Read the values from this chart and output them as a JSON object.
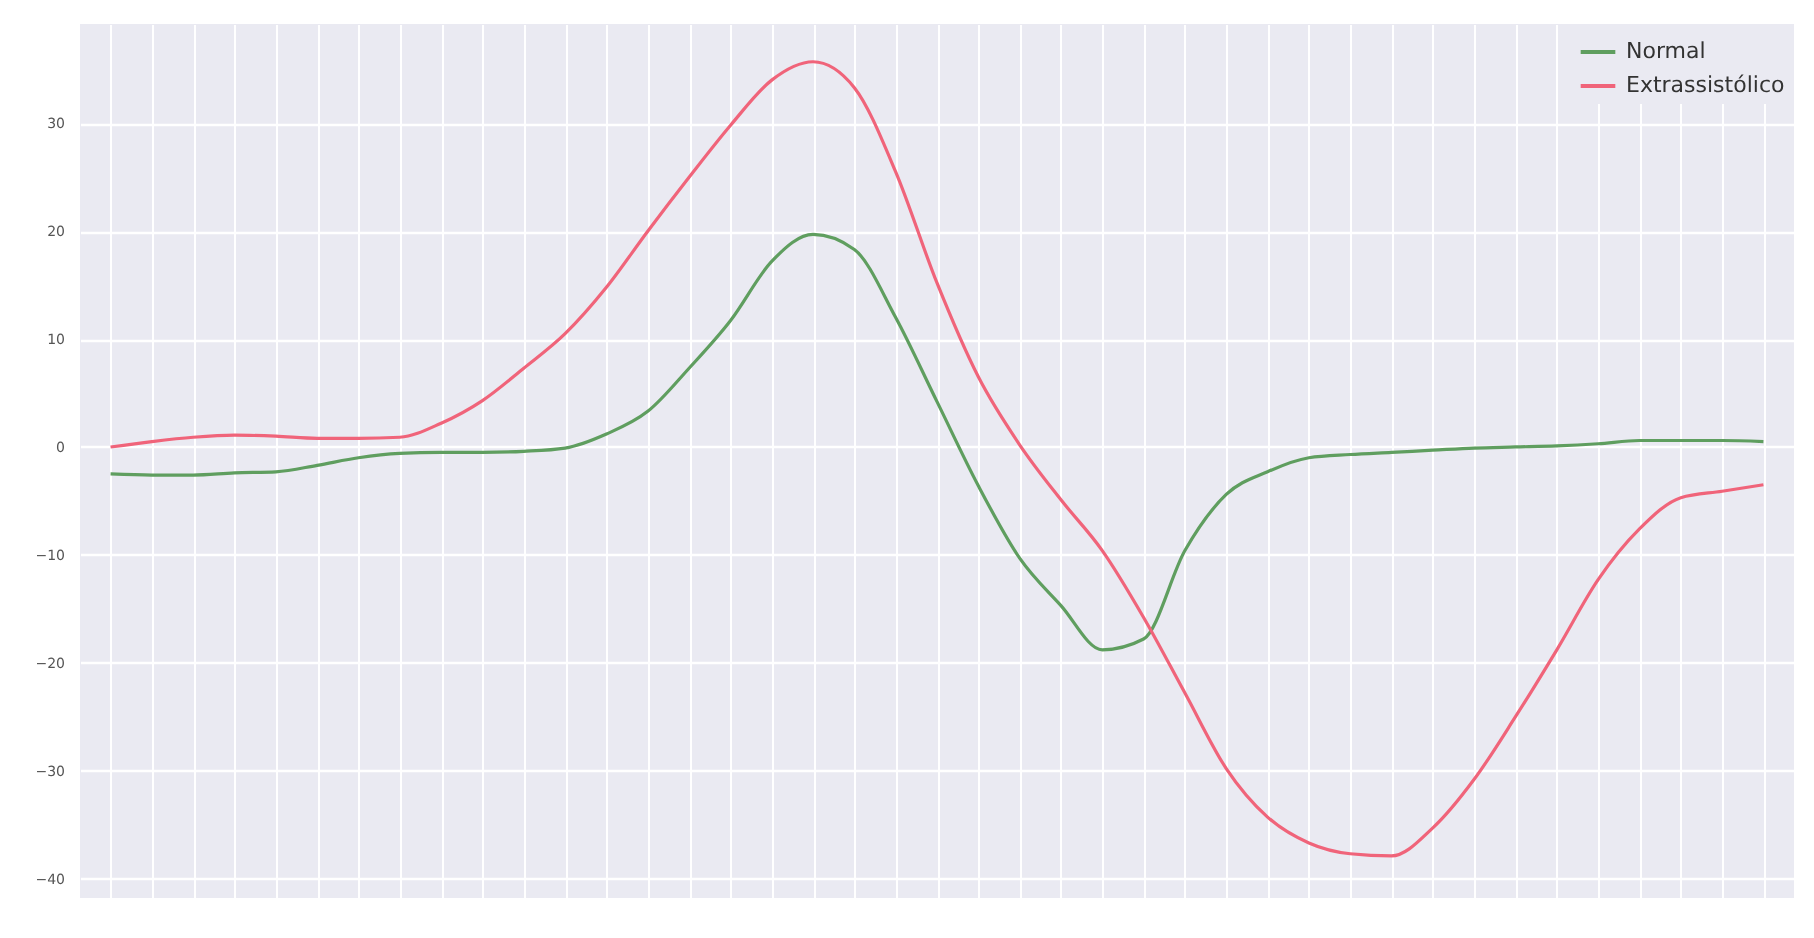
{
  "chart_data": {
    "type": "line",
    "categories": [
      null,
      null,
      null,
      null,
      null,
      null,
      null,
      null,
      null,
      null,
      null,
      null,
      null,
      null,
      null,
      null,
      null,
      null,
      null,
      null,
      null,
      null,
      null,
      null,
      null,
      null,
      null,
      null,
      null,
      null,
      null,
      null,
      null,
      null,
      null,
      null,
      null,
      null,
      null,
      null,
      null
    ],
    "series": [
      {
        "name": "Normal",
        "color": "#5f9e5f",
        "values": [
          -2.5,
          -2.6,
          -2.6,
          -2.4,
          -2.3,
          -1.7,
          -1.0,
          -0.6,
          -0.5,
          -0.5,
          -0.4,
          -0.1,
          1.2,
          3.3,
          7.3,
          11.7,
          17.2,
          19.7,
          18.3,
          12,
          4.2,
          -3.6,
          -10.3,
          -14.7,
          -18.8,
          -17.8,
          -9.6,
          -4.4,
          -2.3,
          -1.0,
          -0.7,
          -0.5,
          -0.3,
          -0.1,
          0,
          0.1,
          0.3,
          0.6,
          0.6,
          0.6,
          0.5
        ]
      },
      {
        "name": "Extrassistólico",
        "color": "#f0647a",
        "values": [
          0,
          0.5,
          0.9,
          1.1,
          1.0,
          0.8,
          0.8,
          0.9,
          2.2,
          4.3,
          7.3,
          10.5,
          14.8,
          20,
          25,
          29.8,
          34,
          35.7,
          33.3,
          25.5,
          15.2,
          6.5,
          0.2,
          -4.9,
          -9.6,
          -15.8,
          -22.8,
          -29.8,
          -34.3,
          -36.7,
          -37.7,
          -37.9,
          -35.3,
          -30.8,
          -25,
          -18.8,
          -12.3,
          -7.6,
          -4.7,
          -4.1,
          -3.5
        ]
      }
    ],
    "ylim": [
      -41.8,
      39.2
    ],
    "yticks": [
      -40,
      -30,
      -20,
      -10,
      0,
      10,
      20,
      30
    ],
    "grid": true,
    "legend": "top right",
    "marker": "none",
    "line_style": "solid"
  }
}
